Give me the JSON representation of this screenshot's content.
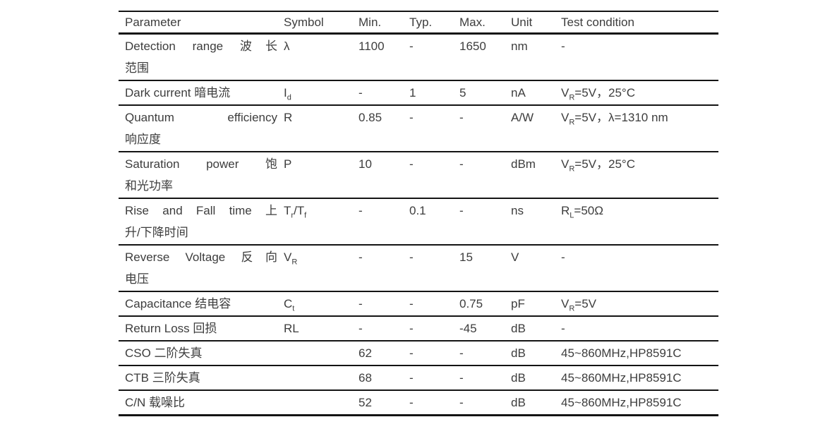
{
  "page": {
    "background_color": "#ffffff",
    "text_color": "#3d3d3d",
    "rule_color": "#141414"
  },
  "table": {
    "columns": [
      {
        "label": "Parameter"
      },
      {
        "label": "Symbol"
      },
      {
        "label": "Min."
      },
      {
        "label": "Typ."
      },
      {
        "label": "Max."
      },
      {
        "label": "Unit"
      },
      {
        "label": "Test condition"
      }
    ],
    "rows": [
      {
        "parameter_lines": [
          "Detection range 波长",
          "范围"
        ],
        "symbol": "λ",
        "min": "1100",
        "typ": "-",
        "max": "1650",
        "unit": "nm",
        "condition": "-"
      },
      {
        "parameter_lines": [
          "Dark current 暗电流"
        ],
        "symbol": "I_{d}",
        "min": "-",
        "typ": "1",
        "max": "5",
        "unit": "nA",
        "condition": "V_{R}=5V，25°C"
      },
      {
        "parameter_lines": [
          "Quantum efficiency",
          "响应度"
        ],
        "symbol": "R",
        "min": "0.85",
        "typ": "-",
        "max": "-",
        "unit": "A/W",
        "condition": "V_{R}=5V，λ=1310 nm"
      },
      {
        "parameter_lines": [
          "Saturation power 饱",
          "和光功率"
        ],
        "symbol": "P",
        "min": "10",
        "typ": "-",
        "max": "-",
        "unit": "dBm",
        "condition": "V_{R}=5V，25°C"
      },
      {
        "parameter_lines": [
          "Rise and Fall time 上",
          "升/下降时间"
        ],
        "symbol": "T_{r}/T_{f}",
        "min": "-",
        "typ": "0.1",
        "max": "-",
        "unit": "ns",
        "condition": "R_{L}=50Ω"
      },
      {
        "parameter_lines": [
          "Reverse Voltage 反向",
          "电压"
        ],
        "symbol": "V_{R}",
        "min": "-",
        "typ": "-",
        "max": "15",
        "unit": "V",
        "condition": "-"
      },
      {
        "parameter_lines": [
          "Capacitance 结电容"
        ],
        "symbol": "C_{t}",
        "min": "-",
        "typ": "-",
        "max": "0.75",
        "unit": "pF",
        "condition": "V_{R}=5V"
      },
      {
        "parameter_lines": [
          "Return Loss 回损"
        ],
        "symbol": "RL",
        "min": "-",
        "typ": "-",
        "max": "-45",
        "unit": "dB",
        "condition": "-"
      },
      {
        "parameter_lines": [
          "CSO 二阶失真"
        ],
        "symbol": "",
        "min": "62",
        "typ": "-",
        "max": "-",
        "unit": "dB",
        "condition": "45~860MHz,HP8591C"
      },
      {
        "parameter_lines": [
          "CTB 三阶失真"
        ],
        "symbol": "",
        "min": "68",
        "typ": "-",
        "max": "-",
        "unit": "dB",
        "condition": "45~860MHz,HP8591C"
      },
      {
        "parameter_lines": [
          "C/N 载噪比"
        ],
        "symbol": "",
        "min": "52",
        "typ": "-",
        "max": "-",
        "unit": "dB",
        "condition": "45~860MHz,HP8591C"
      }
    ]
  }
}
